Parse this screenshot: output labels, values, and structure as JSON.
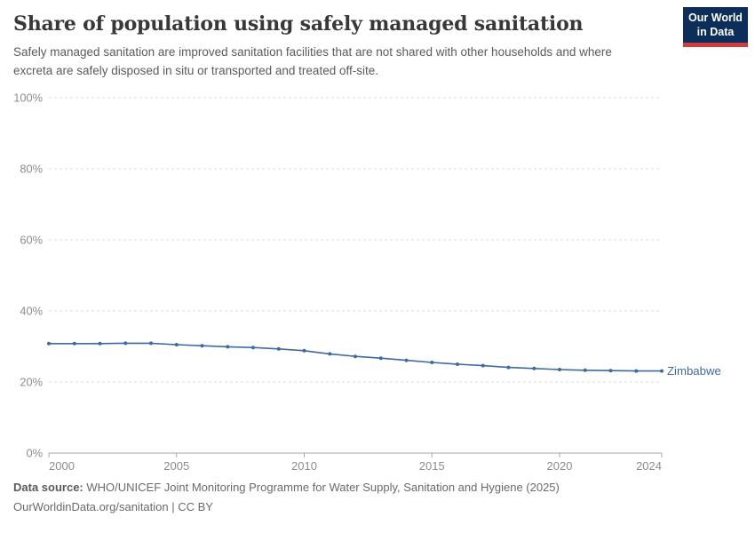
{
  "header": {
    "title": "Share of population using safely managed sanitation",
    "subtitle": "Safely managed sanitation are improved sanitation facilities that are not shared with other households and where excreta are safely disposed in situ or transported and treated off-site.",
    "logo": {
      "line1": "Our World",
      "line2": "in Data",
      "bg_color": "#0d2e5a",
      "accent_color": "#cf3d3d"
    }
  },
  "chart_data": {
    "type": "line",
    "title": "Share of population using safely managed sanitation",
    "xlabel": "",
    "ylabel": "",
    "xlim": [
      2000,
      2024
    ],
    "ylim": [
      0,
      100
    ],
    "grid": "horizontal-dashed",
    "legend_position": "end-of-line-label",
    "yticks": [
      0,
      20,
      40,
      60,
      80,
      100
    ],
    "ytick_labels": [
      "0%",
      "20%",
      "40%",
      "60%",
      "80%",
      "100%"
    ],
    "xticks": [
      2000,
      2005,
      2010,
      2015,
      2020,
      2024
    ],
    "xtick_labels": [
      "2000",
      "2005",
      "2010",
      "2015",
      "2020",
      "2024"
    ],
    "series": [
      {
        "name": "Zimbabwe",
        "color": "#3d6b9e",
        "x": [
          2000,
          2001,
          2002,
          2003,
          2004,
          2005,
          2006,
          2007,
          2008,
          2009,
          2010,
          2011,
          2012,
          2013,
          2014,
          2015,
          2016,
          2017,
          2018,
          2019,
          2020,
          2021,
          2022,
          2023,
          2024
        ],
        "values": [
          30.8,
          30.8,
          30.8,
          30.9,
          30.9,
          30.5,
          30.2,
          29.9,
          29.7,
          29.3,
          28.8,
          27.9,
          27.2,
          26.7,
          26.1,
          25.5,
          25.0,
          24.6,
          24.1,
          23.8,
          23.5,
          23.3,
          23.2,
          23.1,
          23.1
        ]
      }
    ],
    "colors": {
      "gridline": "#dcdcdc",
      "axis_line": "#a8a8a8",
      "tick_label": "#8c8c8c"
    }
  },
  "footer": {
    "datasource_label": "Data source:",
    "datasource": "WHO/UNICEF Joint Monitoring Programme for Water Supply, Sanitation and Hygiene (2025)",
    "link": "OurWorldinData.org/sanitation | CC BY"
  }
}
